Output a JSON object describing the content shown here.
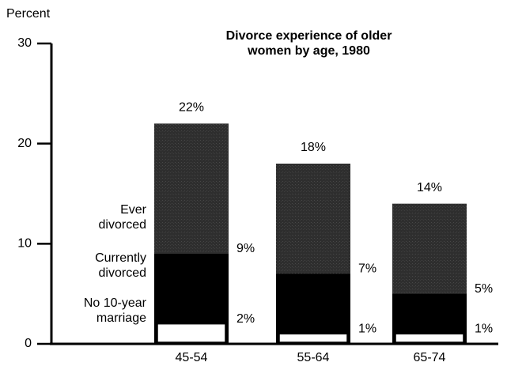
{
  "chart_data": {
    "type": "bar",
    "title": "Divorce experience of older women by age, 1980",
    "y_label": "Percent",
    "categories": [
      "45-54",
      "55-64",
      "65-74"
    ],
    "series": [
      {
        "name": "Ever divorced",
        "color": "#2e2e2e",
        "values": [
          22,
          18,
          14
        ],
        "value_labels": [
          "22%",
          "18%",
          "14%"
        ]
      },
      {
        "name": "Currently divorced",
        "color": "#000000",
        "values": [
          9,
          7,
          5
        ],
        "value_labels": [
          "9%",
          "7%",
          "5%"
        ]
      },
      {
        "name": "No 10-year marriage",
        "color": "#ffffff",
        "values": [
          2,
          1,
          1
        ],
        "value_labels": [
          "2%",
          "1%",
          "1%"
        ]
      }
    ],
    "ylim": [
      0,
      30
    ],
    "yticks": [
      0,
      10,
      20,
      30
    ]
  }
}
